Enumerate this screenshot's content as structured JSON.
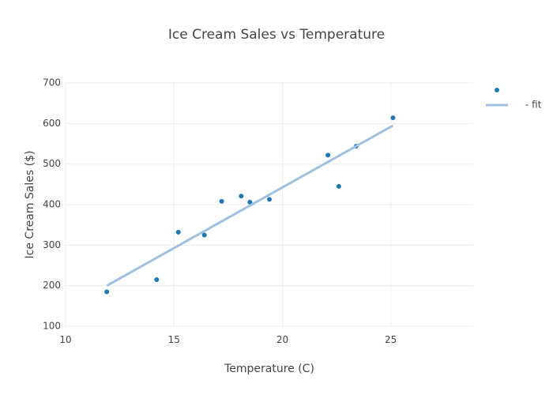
{
  "chart_data": {
    "type": "scatter",
    "title": "Ice Cream Sales vs Temperature",
    "x_label": "Temperature (C)",
    "y_label": "Ice Cream Sales ($)",
    "xlim": [
      10,
      28.8
    ],
    "ylim": [
      97,
      704
    ],
    "xticks": [
      10,
      15,
      20,
      25
    ],
    "yticks": [
      100,
      200,
      300,
      400,
      500,
      600,
      700
    ],
    "grid": true,
    "legend": "right",
    "series": [
      {
        "mode": "markers",
        "color": "#1f77b4",
        "x": [
          11.9,
          14.2,
          15.2,
          16.4,
          17.2,
          18.1,
          18.5,
          19.4,
          22.1,
          22.6,
          23.4,
          25.1
        ],
        "values": [
          185,
          215,
          332,
          325,
          408,
          421,
          406,
          413,
          522,
          445,
          544,
          614
        ]
      },
      {
        "name": "- fit",
        "mode": "lines",
        "color": "#9ec0de",
        "x": [
          11.9,
          25.1
        ],
        "values": [
          200,
          595
        ]
      }
    ]
  }
}
